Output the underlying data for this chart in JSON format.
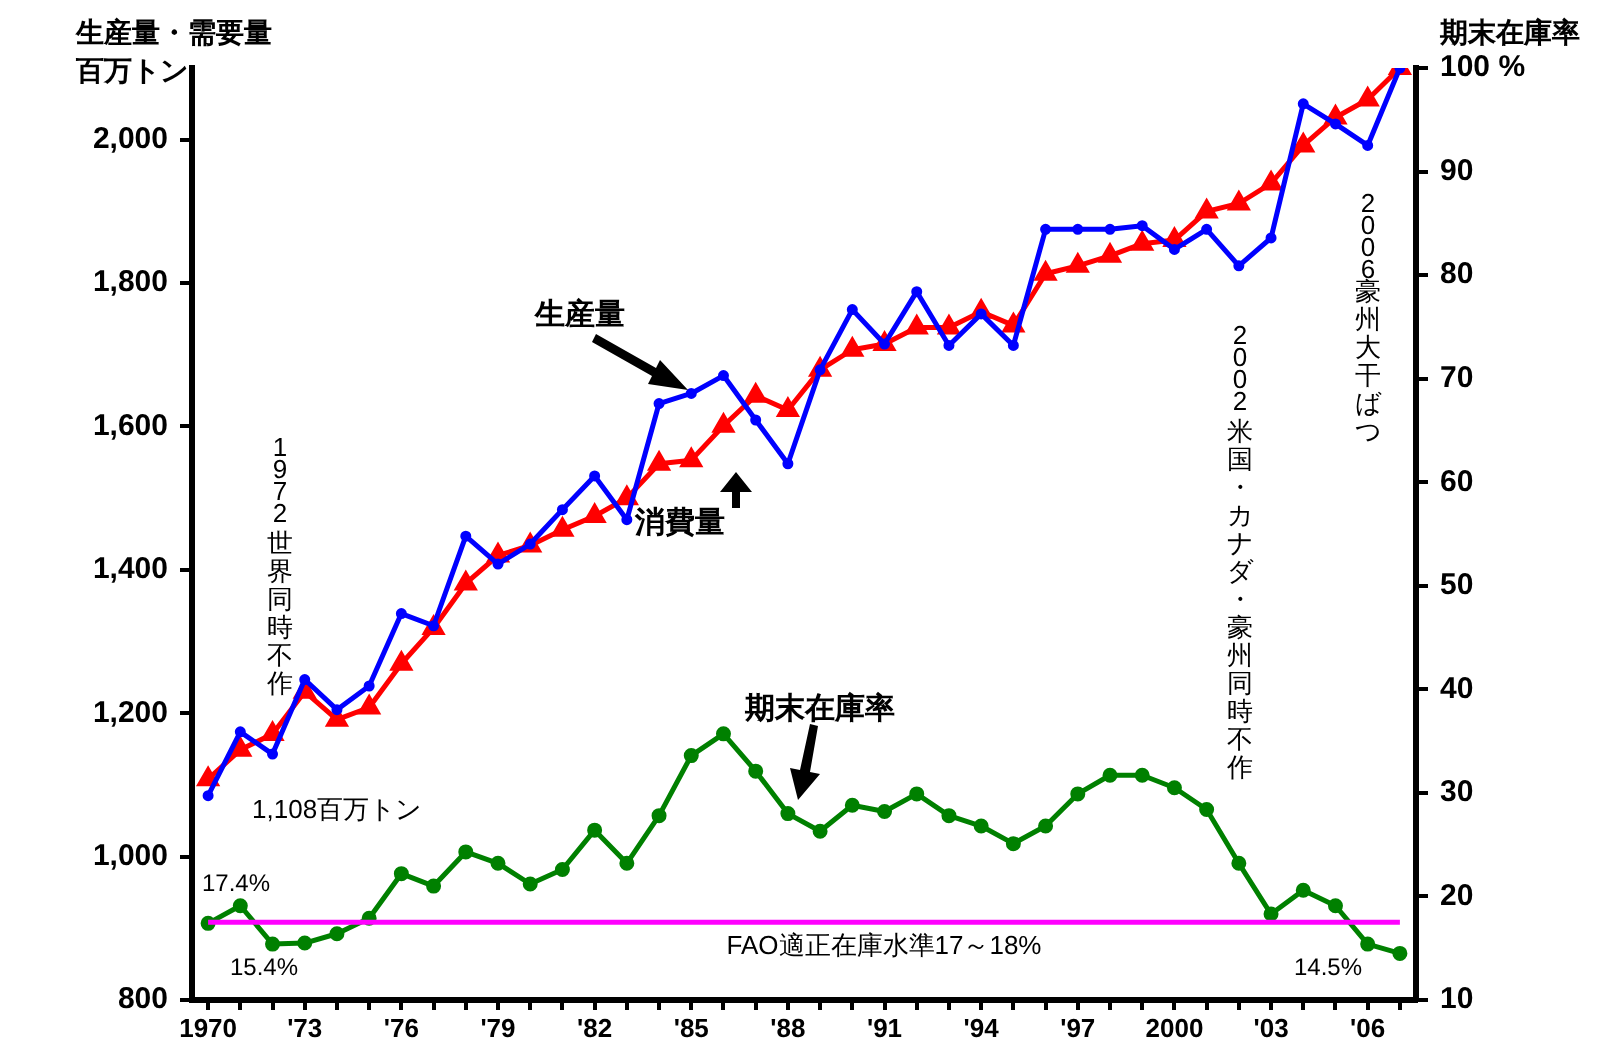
{
  "chart_data": {
    "type": "line",
    "ylabel": "生産量・需要量百万トン",
    "y2label": "期末在庫率",
    "categories": [
      "1970",
      null,
      null,
      "'73",
      null,
      null,
      "'76",
      null,
      null,
      "'79",
      null,
      null,
      "'82",
      null,
      null,
      "'85",
      null,
      null,
      "'88",
      null,
      null,
      "'91",
      null,
      null,
      "'94",
      null,
      null,
      "'97",
      null,
      null,
      "2000",
      null,
      null,
      "'03",
      null,
      null,
      "'06",
      null
    ],
    "series": [
      {
        "name": "生産量",
        "color": "#0000ff",
        "marker": "circle",
        "values": [
          1085,
          1174,
          1143,
          1247,
          1205,
          1238,
          1339,
          1322,
          1447,
          1408,
          1436,
          1484,
          1531,
          1470,
          1632,
          1646,
          1671,
          1609,
          1548,
          1679,
          1763,
          1715,
          1788,
          1713,
          1757,
          1713,
          1875,
          1875,
          1875,
          1880,
          1847,
          1875,
          1824,
          1863,
          2050,
          2022,
          1992,
          2100
        ]
      },
      {
        "name": "消費量",
        "color": "#ff0000",
        "marker": "triangle",
        "values": [
          1108,
          1149,
          1171,
          1230,
          1191,
          1208,
          1269,
          1319,
          1381,
          1420,
          1434,
          1456,
          1475,
          1500,
          1548,
          1553,
          1601,
          1643,
          1623,
          1679,
          1707,
          1715,
          1738,
          1738,
          1760,
          1741,
          1813,
          1824,
          1838,
          1855,
          1860,
          1900,
          1911,
          1939,
          1992,
          2031,
          2056,
          2100
        ]
      },
      {
        "name": "期末在庫率",
        "color": "#008000",
        "marker": "circle",
        "axis": "y2",
        "values": [
          17.4,
          19.1,
          15.4,
          15.5,
          16.4,
          17.9,
          22.2,
          21.0,
          24.3,
          23.2,
          21.2,
          22.6,
          26.4,
          23.2,
          27.8,
          33.6,
          35.7,
          32.1,
          28.0,
          26.3,
          28.8,
          28.2,
          29.9,
          27.8,
          26.8,
          25.1,
          26.8,
          29.9,
          31.7,
          31.7,
          30.5,
          28.4,
          23.2,
          18.3,
          20.6,
          19.1,
          15.4,
          14.5
        ]
      }
    ],
    "ylim": [
      800,
      2100
    ],
    "yticks": [
      800,
      {
        "value": 1000,
        "label": "1,000"
      },
      {
        "value": 1200,
        "label": "1,200"
      },
      {
        "value": 1400,
        "label": "1,400"
      },
      {
        "value": 1600,
        "label": "1,600"
      },
      {
        "value": 1800,
        "label": "1,800"
      },
      {
        "value": 2000,
        "label": "2,000"
      }
    ],
    "y2lim": [
      10,
      100
    ],
    "y2ticks": [
      10,
      20,
      30,
      40,
      50,
      60,
      70,
      80,
      90,
      {
        "value": 100,
        "label": "100 %"
      }
    ],
    "ref_lines": [
      {
        "axis": "y2",
        "value": 17.5,
        "label": "FAO適正在庫水準17～18%",
        "color": "#ff00ff"
      }
    ],
    "annotations": [
      "1972 世界同時不作",
      "2002 米国・カナダ・豪州同時不作",
      "2006豪州大干ばつ",
      {
        "text": "1,108百万トン",
        "x": "1970",
        "y": 1108
      },
      "17.4%",
      "15.4%",
      "14.5%"
    ],
    "grid": false,
    "legend": false,
    "line_style": "solid"
  }
}
